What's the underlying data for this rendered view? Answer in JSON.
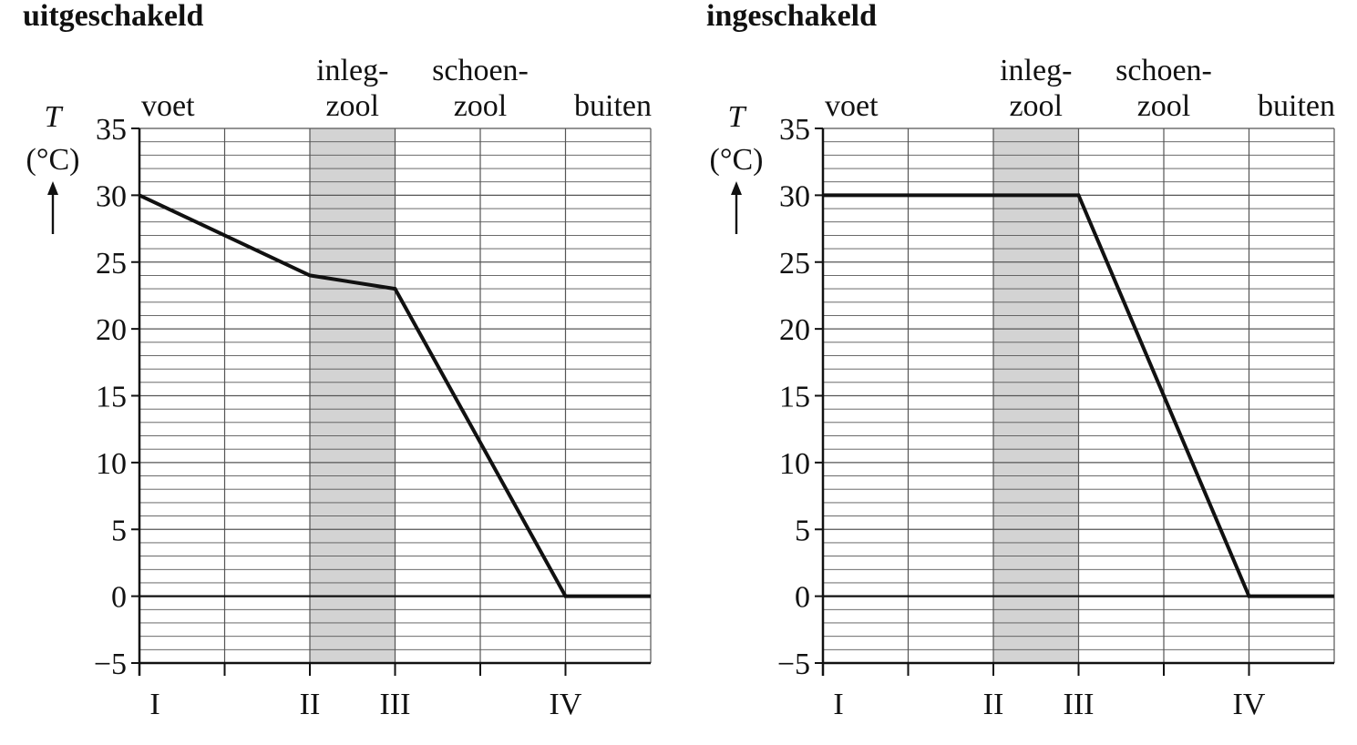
{
  "chart_data": [
    {
      "type": "line",
      "title": "uitgeschakeld",
      "ylabel_symbol": "T",
      "ylabel_unit": "(°C)",
      "xlabel": "",
      "ylim": [
        -5,
        35
      ],
      "ytick_step": 5,
      "ytick_labels": [
        "−5",
        "0",
        "5",
        "10",
        "15",
        "20",
        "25",
        "30",
        "35"
      ],
      "x_positions": [
        "I",
        "II",
        "III",
        "IV"
      ],
      "regions": [
        {
          "label": [
            "voet"
          ],
          "shaded": false
        },
        {
          "label": [
            "inleg-",
            "zool"
          ],
          "shaded": true
        },
        {
          "label": [
            "schoen-",
            "zool"
          ],
          "shaded": false
        },
        {
          "label": [
            "buiten"
          ],
          "shaded": false
        }
      ],
      "grid": true,
      "series": [
        {
          "points": [
            {
              "x": "I",
              "y": 30
            },
            {
              "x": "II",
              "y": 24
            },
            {
              "x": "III",
              "y": 23
            },
            {
              "x": "IV",
              "y": 0
            },
            {
              "x": "end",
              "y": 0
            }
          ]
        }
      ]
    },
    {
      "type": "line",
      "title": "ingeschakeld",
      "ylabel_symbol": "T",
      "ylabel_unit": "(°C)",
      "xlabel": "",
      "ylim": [
        -5,
        35
      ],
      "ytick_step": 5,
      "ytick_labels": [
        "−5",
        "0",
        "5",
        "10",
        "15",
        "20",
        "25",
        "30",
        "35"
      ],
      "x_positions": [
        "I",
        "II",
        "III",
        "IV"
      ],
      "regions": [
        {
          "label": [
            "voet"
          ],
          "shaded": false
        },
        {
          "label": [
            "inleg-",
            "zool"
          ],
          "shaded": true
        },
        {
          "label": [
            "schoen-",
            "zool"
          ],
          "shaded": false
        },
        {
          "label": [
            "buiten"
          ],
          "shaded": false
        }
      ],
      "grid": true,
      "series": [
        {
          "points": [
            {
              "x": "I",
              "y": 30
            },
            {
              "x": "II",
              "y": 30
            },
            {
              "x": "III",
              "y": 30
            },
            {
              "x": "IV",
              "y": 0
            },
            {
              "x": "end",
              "y": 0
            }
          ]
        }
      ]
    }
  ],
  "colors": {
    "line": "#111111",
    "grid": "#555555",
    "shade": "#d3d3d3",
    "background": "#ffffff"
  }
}
